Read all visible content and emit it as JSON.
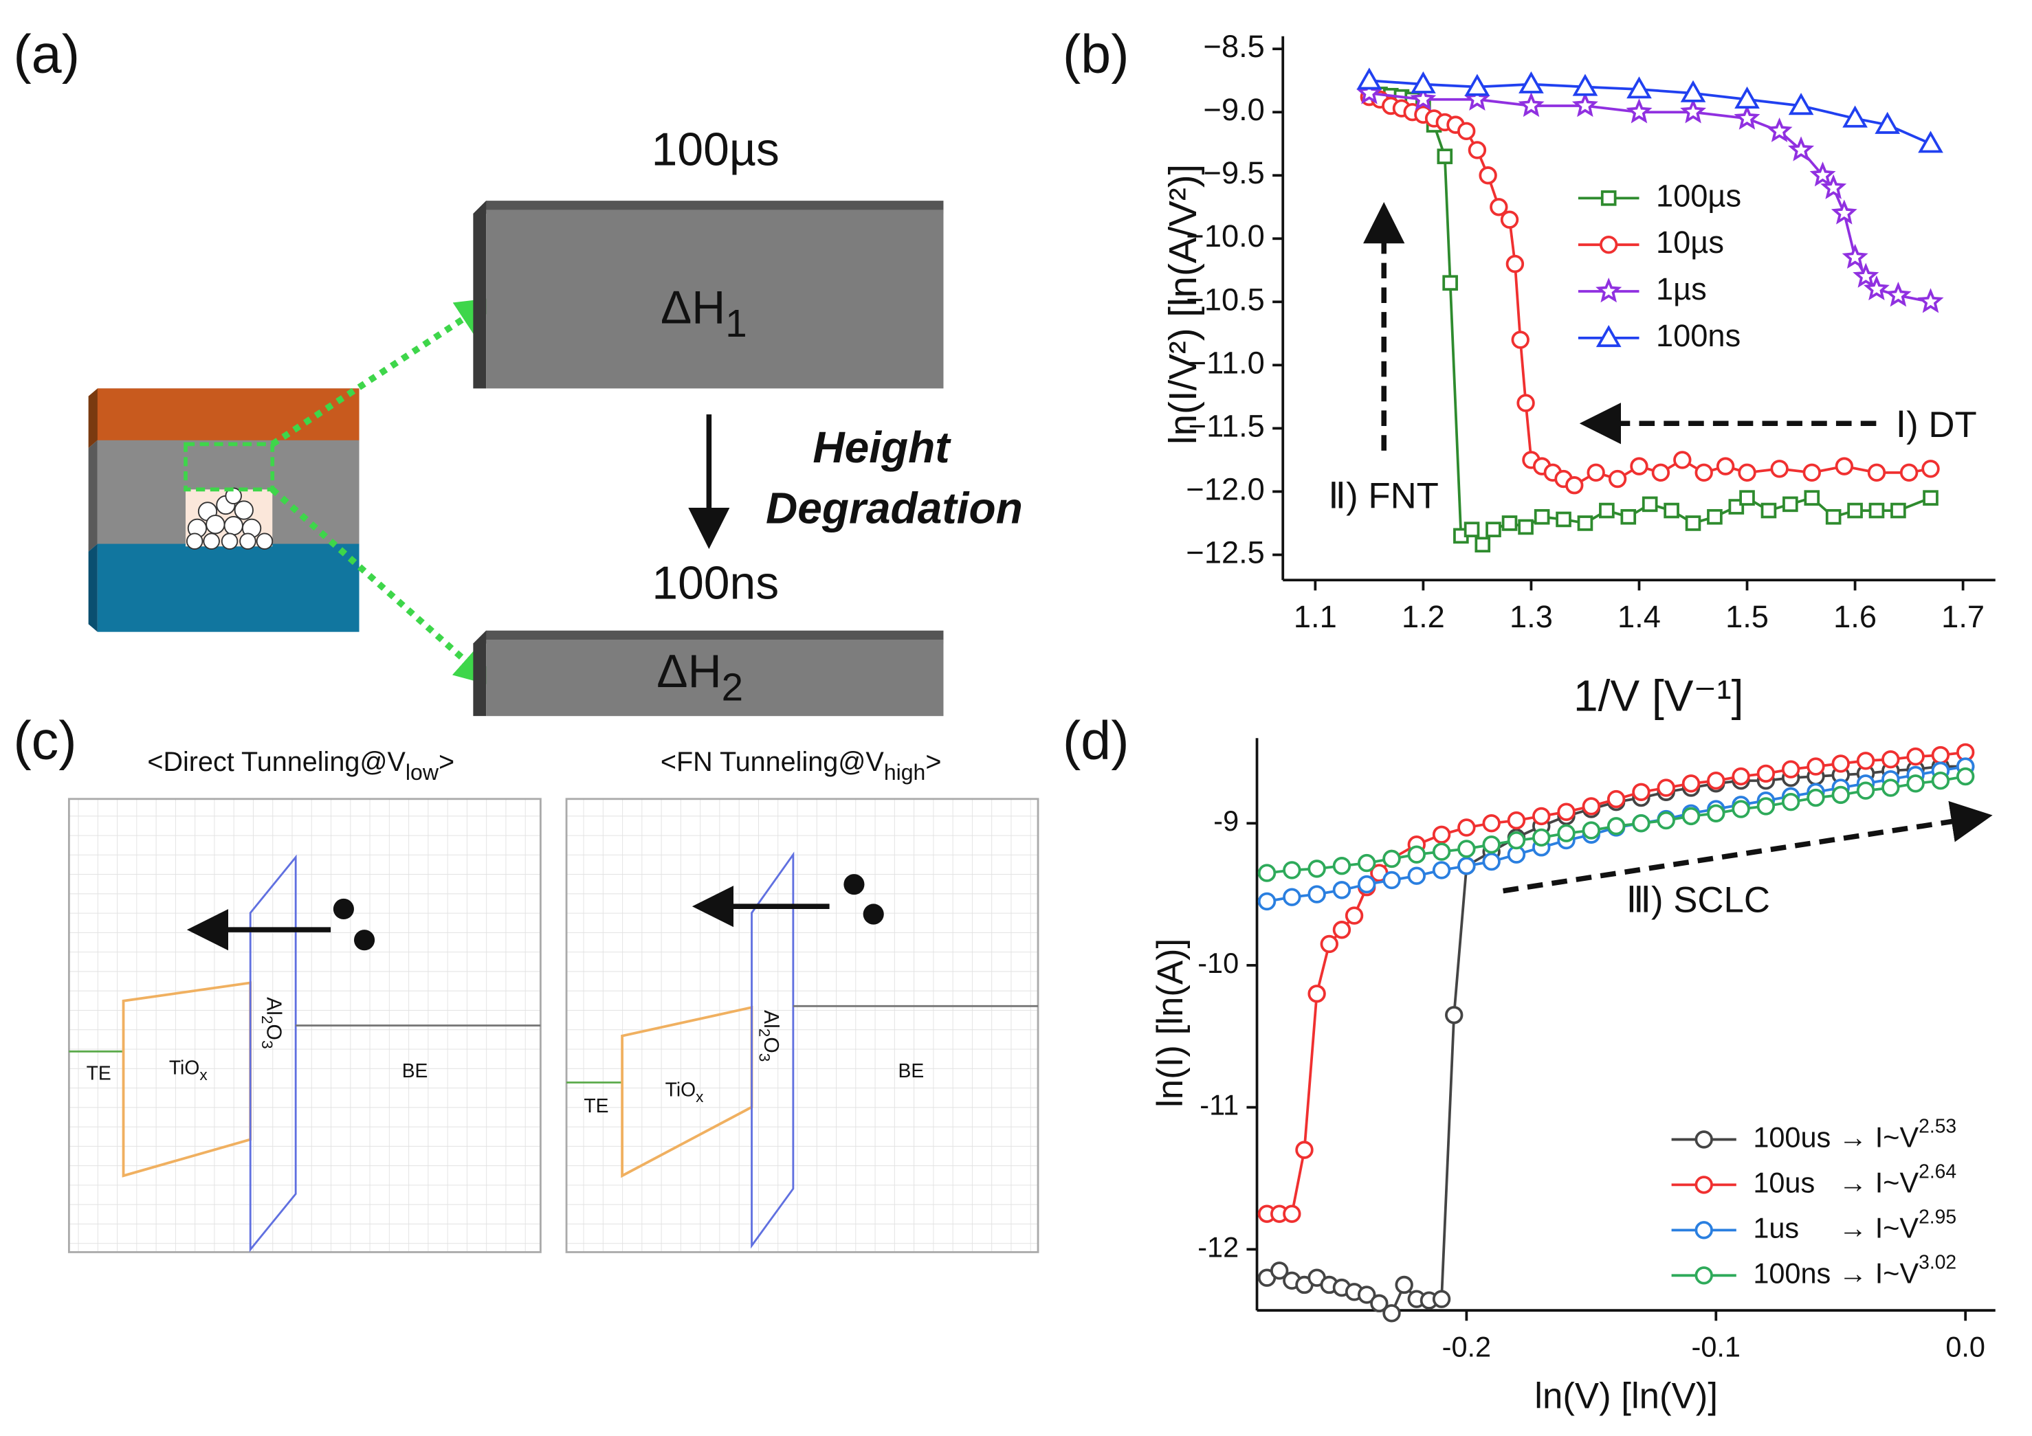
{
  "panels": {
    "a": {
      "label": "(a)",
      "top_time": "100µs",
      "bottom_time": "100ns",
      "top_barrier": {
        "text": "ΔH",
        "sub": "1"
      },
      "bottom_barrier": {
        "text": "ΔH",
        "sub": "2"
      },
      "arrow_text": [
        "Height",
        "Degradation"
      ]
    },
    "c": {
      "label": "(c)",
      "left": {
        "title": {
          "pre": "<Direct Tunneling@V",
          "sub": "low",
          "post": ">"
        },
        "te": "TE",
        "tiox": {
          "text": "TiO",
          "sub": "x"
        },
        "al2o3": {
          "a": "Al",
          "s1": "2",
          "b": "O",
          "s2": "3"
        },
        "be": "BE"
      },
      "right": {
        "title": {
          "pre": "<FN Tunneling@V",
          "sub": "high",
          "post": ">"
        },
        "te": "TE",
        "tiox": {
          "text": "TiO",
          "sub": "x"
        },
        "al2o3": {
          "a": "Al",
          "s1": "2",
          "b": "O",
          "s2": "3"
        },
        "be": "BE"
      }
    }
  },
  "chart_data": [
    {
      "type": "line",
      "panel_label": "(b)",
      "xlabel": "1/V [V⁻¹]",
      "ylabel": "ln(I/V²) [ln(A/V²)]",
      "xlim": [
        1.07,
        1.73
      ],
      "ylim": [
        -12.7,
        -8.4
      ],
      "xticks": [
        1.1,
        1.2,
        1.3,
        1.4,
        1.5,
        1.6,
        1.7
      ],
      "yticks": [
        {
          "value": -8.5,
          "label": "−8.5"
        },
        {
          "value": -9.0,
          "label": "−9.0"
        },
        {
          "value": -9.5,
          "label": "−9.5"
        },
        {
          "value": -10.0,
          "label": "−10.0"
        },
        {
          "value": -10.5,
          "label": "−10.5"
        },
        {
          "value": -11.0,
          "label": "−11.0"
        },
        {
          "value": -11.5,
          "label": "−11.5"
        },
        {
          "value": -12.0,
          "label": "−12.0"
        },
        {
          "value": -12.5,
          "label": "−12.5"
        }
      ],
      "annotations": [
        "Ⅰ) DT",
        "Ⅱ) FNT"
      ],
      "series": [
        {
          "name": "100µs",
          "color": "#2e8b2e",
          "marker": "square",
          "x": [
            1.15,
            1.16,
            1.17,
            1.18,
            1.19,
            1.2,
            1.21,
            1.22,
            1.225,
            1.235,
            1.245,
            1.255,
            1.265,
            1.28,
            1.295,
            1.31,
            1.33,
            1.35,
            1.37,
            1.39,
            1.41,
            1.43,
            1.45,
            1.47,
            1.49,
            1.5,
            1.52,
            1.54,
            1.56,
            1.58,
            1.6,
            1.62,
            1.64,
            1.67
          ],
          "values": [
            -8.85,
            -8.86,
            -8.87,
            -8.88,
            -8.9,
            -8.93,
            -9.1,
            -9.35,
            -10.35,
            -12.35,
            -12.3,
            -12.42,
            -12.3,
            -12.25,
            -12.28,
            -12.2,
            -12.22,
            -12.25,
            -12.15,
            -12.2,
            -12.1,
            -12.15,
            -12.25,
            -12.2,
            -12.12,
            -12.05,
            -12.15,
            -12.1,
            -12.05,
            -12.2,
            -12.15,
            -12.15,
            -12.15,
            -12.05
          ]
        },
        {
          "name": "10µs",
          "color": "#f03030",
          "marker": "circle",
          "x": [
            1.15,
            1.16,
            1.17,
            1.18,
            1.19,
            1.2,
            1.21,
            1.22,
            1.23,
            1.24,
            1.25,
            1.26,
            1.27,
            1.28,
            1.285,
            1.29,
            1.295,
            1.3,
            1.31,
            1.32,
            1.33,
            1.34,
            1.36,
            1.38,
            1.4,
            1.42,
            1.44,
            1.46,
            1.48,
            1.5,
            1.53,
            1.56,
            1.59,
            1.62,
            1.65,
            1.67
          ],
          "values": [
            -8.88,
            -8.9,
            -8.95,
            -8.97,
            -9.0,
            -9.02,
            -9.05,
            -9.08,
            -9.1,
            -9.15,
            -9.3,
            -9.5,
            -9.75,
            -9.85,
            -10.2,
            -10.8,
            -11.3,
            -11.75,
            -11.8,
            -11.85,
            -11.9,
            -11.95,
            -11.85,
            -11.9,
            -11.8,
            -11.85,
            -11.75,
            -11.85,
            -11.8,
            -11.85,
            -11.82,
            -11.85,
            -11.8,
            -11.85,
            -11.85,
            -11.82
          ]
        },
        {
          "name": "1µs",
          "color": "#9030e0",
          "marker": "star",
          "x": [
            1.15,
            1.2,
            1.25,
            1.3,
            1.35,
            1.4,
            1.45,
            1.5,
            1.53,
            1.55,
            1.57,
            1.58,
            1.59,
            1.6,
            1.61,
            1.62,
            1.64,
            1.67
          ],
          "values": [
            -8.85,
            -8.9,
            -8.9,
            -8.95,
            -8.95,
            -9.0,
            -9.0,
            -9.05,
            -9.15,
            -9.3,
            -9.5,
            -9.6,
            -9.8,
            -10.15,
            -10.3,
            -10.4,
            -10.45,
            -10.5
          ]
        },
        {
          "name": "100ns",
          "color": "#2040f0",
          "marker": "triangle",
          "x": [
            1.15,
            1.2,
            1.25,
            1.3,
            1.35,
            1.4,
            1.45,
            1.5,
            1.55,
            1.6,
            1.63,
            1.67
          ],
          "values": [
            -8.75,
            -8.78,
            -8.8,
            -8.78,
            -8.8,
            -8.82,
            -8.85,
            -8.9,
            -8.95,
            -9.05,
            -9.1,
            -9.25
          ]
        }
      ]
    },
    {
      "type": "line",
      "panel_label": "(d)",
      "xlabel": "ln(V) [ln(V)]",
      "ylabel": "ln(I) [ln(A)]",
      "xlim": [
        -0.284,
        0.012
      ],
      "ylim": [
        -12.43,
        -8.4
      ],
      "xticks": [
        -0.2,
        -0.1,
        {
          "value": 0,
          "label": "0.0"
        }
      ],
      "yticks": [
        -12,
        -11,
        -10,
        -9
      ],
      "annotations": [
        "Ⅲ) SCLC"
      ],
      "series": [
        {
          "name": "100us → I~V",
          "exponent": 2.53,
          "color": "#444444",
          "marker": "circle",
          "x": [
            -0.28,
            -0.275,
            -0.27,
            -0.265,
            -0.26,
            -0.255,
            -0.25,
            -0.245,
            -0.24,
            -0.235,
            -0.23,
            -0.225,
            -0.22,
            -0.215,
            -0.21,
            -0.205,
            -0.2,
            -0.19,
            -0.18,
            -0.17,
            -0.16,
            -0.15,
            -0.14,
            -0.13,
            -0.12,
            -0.11,
            -0.1,
            -0.09,
            -0.08,
            -0.07,
            -0.06,
            -0.05,
            -0.04,
            -0.03,
            -0.02,
            -0.01,
            0.0
          ],
          "values": [
            -12.2,
            -12.15,
            -12.22,
            -12.25,
            -12.2,
            -12.25,
            -12.27,
            -12.3,
            -12.32,
            -12.38,
            -12.45,
            -12.25,
            -12.35,
            -12.36,
            -12.35,
            -10.35,
            -9.3,
            -9.2,
            -9.1,
            -9.02,
            -8.95,
            -8.9,
            -8.85,
            -8.82,
            -8.78,
            -8.75,
            -8.72,
            -8.7,
            -8.7,
            -8.68,
            -8.67,
            -8.66,
            -8.65,
            -8.63,
            -8.62,
            -8.6,
            -8.6
          ]
        },
        {
          "name": "10us   → I~V",
          "exponent": 2.64,
          "color": "#f03030",
          "marker": "circle",
          "x": [
            -0.28,
            -0.275,
            -0.27,
            -0.265,
            -0.26,
            -0.255,
            -0.25,
            -0.245,
            -0.24,
            -0.235,
            -0.23,
            -0.22,
            -0.21,
            -0.2,
            -0.19,
            -0.18,
            -0.17,
            -0.16,
            -0.15,
            -0.14,
            -0.13,
            -0.12,
            -0.11,
            -0.1,
            -0.09,
            -0.08,
            -0.07,
            -0.06,
            -0.05,
            -0.04,
            -0.03,
            -0.02,
            -0.01,
            0.0
          ],
          "values": [
            -11.75,
            -11.75,
            -11.75,
            -11.3,
            -10.2,
            -9.85,
            -9.75,
            -9.65,
            -9.45,
            -9.35,
            -9.25,
            -9.15,
            -9.08,
            -9.03,
            -9.0,
            -8.98,
            -8.95,
            -8.92,
            -8.88,
            -8.83,
            -8.78,
            -8.75,
            -8.72,
            -8.7,
            -8.67,
            -8.65,
            -8.62,
            -8.6,
            -8.58,
            -8.56,
            -8.55,
            -8.53,
            -8.52,
            -8.5
          ]
        },
        {
          "name": "1us     → I~V",
          "exponent": 2.95,
          "color": "#2a7fe0",
          "marker": "circle",
          "x": [
            -0.28,
            -0.27,
            -0.26,
            -0.25,
            -0.24,
            -0.23,
            -0.22,
            -0.21,
            -0.2,
            -0.19,
            -0.18,
            -0.17,
            -0.16,
            -0.15,
            -0.14,
            -0.13,
            -0.12,
            -0.11,
            -0.1,
            -0.09,
            -0.08,
            -0.07,
            -0.06,
            -0.05,
            -0.04,
            -0.03,
            -0.02,
            -0.01,
            0.0
          ],
          "values": [
            -9.55,
            -9.52,
            -9.5,
            -9.47,
            -9.43,
            -9.4,
            -9.37,
            -9.33,
            -9.3,
            -9.27,
            -9.22,
            -9.17,
            -9.12,
            -9.08,
            -9.03,
            -9.0,
            -8.97,
            -8.93,
            -8.9,
            -8.87,
            -8.84,
            -8.81,
            -8.78,
            -8.75,
            -8.72,
            -8.69,
            -8.66,
            -8.63,
            -8.6
          ]
        },
        {
          "name": "100ns → I~V",
          "exponent": 3.02,
          "color": "#2eaa5a",
          "marker": "circle",
          "x": [
            -0.28,
            -0.27,
            -0.26,
            -0.25,
            -0.24,
            -0.23,
            -0.22,
            -0.21,
            -0.2,
            -0.19,
            -0.18,
            -0.17,
            -0.16,
            -0.15,
            -0.14,
            -0.13,
            -0.12,
            -0.11,
            -0.1,
            -0.09,
            -0.08,
            -0.07,
            -0.06,
            -0.05,
            -0.04,
            -0.03,
            -0.02,
            -0.01,
            0.0
          ],
          "values": [
            -9.35,
            -9.33,
            -9.32,
            -9.3,
            -9.28,
            -9.25,
            -9.22,
            -9.2,
            -9.18,
            -9.15,
            -9.12,
            -9.1,
            -9.07,
            -9.05,
            -9.02,
            -9.0,
            -8.98,
            -8.95,
            -8.93,
            -8.9,
            -8.88,
            -8.85,
            -8.82,
            -8.8,
            -8.77,
            -8.75,
            -8.72,
            -8.7,
            -8.67
          ]
        }
      ]
    }
  ]
}
